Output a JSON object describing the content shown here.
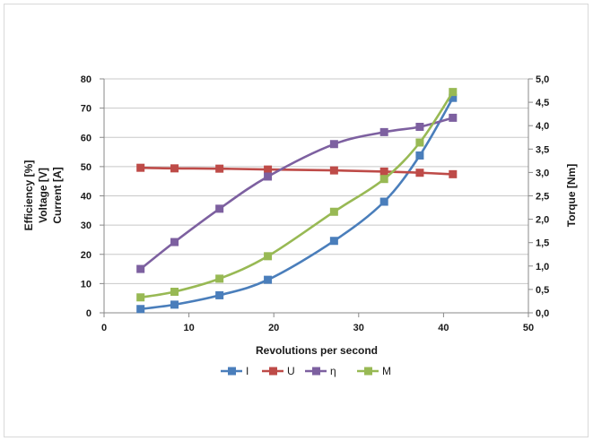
{
  "chart_data": {
    "type": "line",
    "title": "",
    "xlabel": "Revolutions per second",
    "ylabel_left": [
      "Efficiency [%]",
      "Voltage [V]",
      "Current [A]"
    ],
    "ylabel_right": "Torque [Nm]",
    "xlim": [
      0,
      50
    ],
    "xticks": [
      "0",
      "10",
      "20",
      "30",
      "40",
      "50"
    ],
    "ylim_left": [
      0,
      80
    ],
    "yticks_left": [
      "0",
      "10",
      "20",
      "30",
      "40",
      "50",
      "60",
      "70",
      "80"
    ],
    "ylim_right": [
      0,
      5
    ],
    "yticks_right": [
      "0,0",
      "0,5",
      "1,0",
      "1,5",
      "2,0",
      "2,5",
      "3,0",
      "3,5",
      "4,0",
      "4,5",
      "5,0"
    ],
    "grid": "horizontal",
    "legend_position": "bottom",
    "series": [
      {
        "name": "I",
        "axis": "left",
        "color": "#4a7ebb",
        "x": [
          4.3,
          8.3,
          13.6,
          19.3,
          27.1,
          33.0,
          37.2,
          41.1
        ],
        "y": [
          1.3,
          2.8,
          6.0,
          11.3,
          24.6,
          38.0,
          53.8,
          73.5
        ]
      },
      {
        "name": "U",
        "axis": "left",
        "color": "#be4b48",
        "x": [
          4.3,
          8.3,
          13.6,
          19.3,
          27.1,
          33.0,
          37.2,
          41.1
        ],
        "y": [
          49.6,
          49.4,
          49.3,
          49.0,
          48.7,
          48.3,
          47.9,
          47.4
        ]
      },
      {
        "name": "η",
        "axis": "left",
        "color": "#7d60a0",
        "x": [
          4.3,
          8.3,
          13.6,
          19.3,
          27.1,
          33.0,
          37.2,
          41.1
        ],
        "y": [
          15.0,
          24.2,
          35.6,
          46.6,
          57.7,
          61.8,
          63.6,
          66.7
        ]
      },
      {
        "name": "M",
        "axis": "right",
        "color": "#98b954",
        "x": [
          4.3,
          8.3,
          13.6,
          19.3,
          27.1,
          33.0,
          37.2,
          41.1
        ],
        "y": [
          0.33,
          0.45,
          0.73,
          1.21,
          2.16,
          2.86,
          3.64,
          4.72
        ]
      }
    ]
  }
}
